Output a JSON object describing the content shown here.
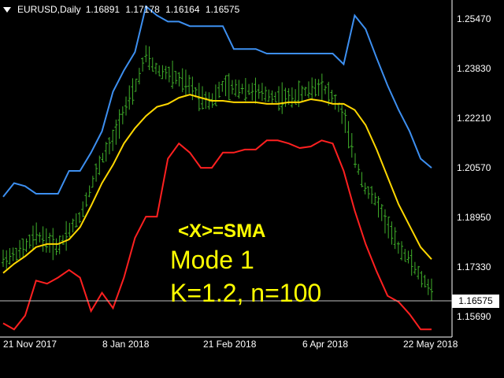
{
  "header": {
    "symbol": "EURUSD,Daily",
    "open": "1.16891",
    "high": "1.17178",
    "low": "1.16164",
    "close": "1.16575"
  },
  "annotation": {
    "line1": "<X>=SMA",
    "line2": "Mode 1",
    "line3": "K=1.2, n=100"
  },
  "current_price_label": "1.16575",
  "colors": {
    "background": "#000000",
    "candles": "#3fae2a",
    "upper_band": "#3d8ff0",
    "middle_band": "#ffd700",
    "lower_band": "#ff2020",
    "annotation": "#ffff00",
    "grid": "#ffffff"
  },
  "chart_data": {
    "type": "line",
    "x_ticks": [
      "21 Nov 2017",
      "8 Jan 2018",
      "21 Feb 2018",
      "6 Apr 2018",
      "22 May 2018"
    ],
    "y_ticks": [
      "1.25470",
      "1.23830",
      "1.22210",
      "1.20570",
      "1.18950",
      "1.17330",
      "1.15690"
    ],
    "ylim": [
      1.151,
      1.259
    ],
    "current_price": 1.16575,
    "grid": false,
    "series": [
      {
        "role": "upper",
        "values": [
          1.1965,
          1.201,
          1.2,
          1.1975,
          1.1975,
          1.1975,
          1.205,
          1.205,
          1.211,
          1.218,
          1.231,
          1.238,
          1.244,
          1.259,
          1.256,
          1.254,
          1.254,
          1.2525,
          1.2525,
          1.2525,
          1.2525,
          1.245,
          1.245,
          1.245,
          1.2435,
          1.2435,
          1.2435,
          1.2435,
          1.2435,
          1.2435,
          1.2435,
          1.24,
          1.256,
          1.2515,
          1.242,
          1.233,
          1.225,
          1.218,
          1.209,
          1.206
        ]
      },
      {
        "role": "middle",
        "values": [
          1.1715,
          1.1745,
          1.177,
          1.18,
          1.181,
          1.181,
          1.1825,
          1.1865,
          1.1935,
          1.201,
          1.207,
          1.214,
          1.219,
          1.223,
          1.226,
          1.227,
          1.229,
          1.23,
          1.229,
          1.228,
          1.228,
          1.2275,
          1.2275,
          1.2275,
          1.227,
          1.227,
          1.2275,
          1.2275,
          1.2285,
          1.228,
          1.227,
          1.227,
          1.225,
          1.22,
          1.212,
          1.203,
          1.194,
          1.187,
          1.18,
          1.176
        ]
      },
      {
        "role": "lower",
        "values": [
          1.155,
          1.153,
          1.1575,
          1.169,
          1.168,
          1.17,
          1.1725,
          1.17,
          1.159,
          1.165,
          1.16,
          1.17,
          1.183,
          1.19,
          1.19,
          1.209,
          1.214,
          1.211,
          1.206,
          1.206,
          1.211,
          1.211,
          1.212,
          1.212,
          1.215,
          1.215,
          1.214,
          1.2125,
          1.213,
          1.215,
          1.214,
          1.205,
          1.192,
          1.181,
          1.172,
          1.164,
          1.162,
          1.158,
          1.153,
          1.153
        ]
      },
      {
        "role": "price",
        "values": [
          1.176,
          1.1775,
          1.18,
          1.184,
          1.182,
          1.18,
          1.1855,
          1.19,
          1.2,
          1.209,
          1.215,
          1.225,
          1.232,
          1.243,
          1.238,
          1.237,
          1.235,
          1.233,
          1.229,
          1.228,
          1.233,
          1.232,
          1.232,
          1.231,
          1.23,
          1.229,
          1.229,
          1.23,
          1.232,
          1.233,
          1.229,
          1.223,
          1.209,
          1.199,
          1.195,
          1.187,
          1.18,
          1.176,
          1.17,
          1.166
        ]
      }
    ]
  }
}
